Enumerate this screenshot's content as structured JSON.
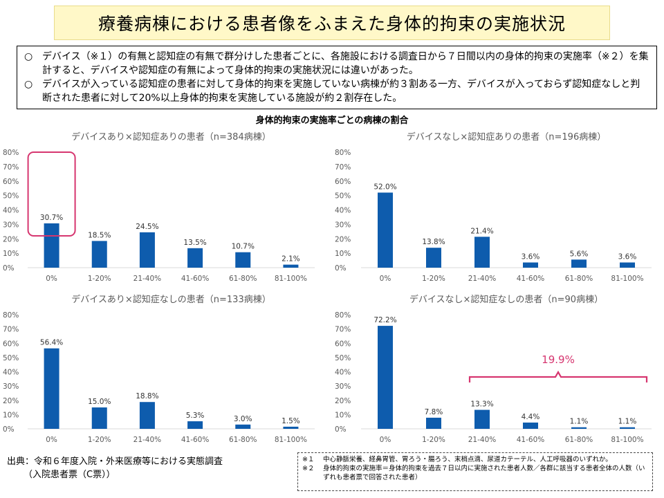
{
  "title": "療養病棟における患者像をふまえた身体的拘束の実施状況",
  "summary": [
    {
      "marker": "○",
      "text": "デバイス（※１）の有無と認知症の有無で群分けした患者ごとに、各施設における調査日から７日間以内の身体的拘束の実施率（※２）を集計すると、デバイスや認知症の有無によって身体的拘束の実施状況には違いがあった。"
    },
    {
      "marker": "○",
      "text": "デバイスが入っている認知症の患者に対して身体的拘束を実施していない病棟が約３割ある一方、デバイスが入っておらず認知症なしと判断された患者に対して20%以上身体的拘束を実施している施設が約２割存在した。"
    }
  ],
  "chart_heading": "身体的拘束の実施率ごとの病棟の割合",
  "colors": {
    "bar": "#0e5cad",
    "highlight": "#d6356f",
    "axis_text": "#595959",
    "subtitle": "#595959",
    "grid": "#d9d9d9"
  },
  "chart_data": [
    {
      "type": "bar",
      "title": "デバイスあり×認知症ありの患者（n=384病棟）",
      "categories": [
        "0%",
        "1-20%",
        "21-40%",
        "41-60%",
        "61-80%",
        "81-100%"
      ],
      "values": [
        30.7,
        18.5,
        24.5,
        13.5,
        10.7,
        2.1
      ],
      "value_labels": [
        "30.7%",
        "18.5%",
        "24.5%",
        "13.5%",
        "10.7%",
        "2.1%"
      ],
      "yticks": [
        "0%",
        "10%",
        "20%",
        "30%",
        "40%",
        "50%",
        "60%",
        "70%",
        "80%"
      ],
      "ylim": [
        0,
        80
      ],
      "highlight_box_category": "0%"
    },
    {
      "type": "bar",
      "title": "デバイスなし×認知症ありの患者（n=196病棟）",
      "categories": [
        "0%",
        "1-20%",
        "21-40%",
        "41-60%",
        "61-80%",
        "81-100%"
      ],
      "values": [
        52.0,
        13.8,
        21.4,
        3.6,
        5.6,
        3.6
      ],
      "value_labels": [
        "52.0%",
        "13.8%",
        "21.4%",
        "3.6%",
        "5.6%",
        "3.6%"
      ],
      "yticks": [
        "0%",
        "10%",
        "20%",
        "30%",
        "40%",
        "50%",
        "60%",
        "70%",
        "80%"
      ],
      "ylim": [
        0,
        80
      ]
    },
    {
      "type": "bar",
      "title": "デバイスあり×認知症なしの患者（n=133病棟）",
      "categories": [
        "0%",
        "1-20%",
        "21-40%",
        "41-60%",
        "61-80%",
        "81-100%"
      ],
      "values": [
        56.4,
        15.0,
        18.8,
        5.3,
        3.0,
        1.5
      ],
      "value_labels": [
        "56.4%",
        "15.0%",
        "18.8%",
        "5.3%",
        "3.0%",
        "1.5%"
      ],
      "yticks": [
        "0%",
        "10%",
        "20%",
        "30%",
        "40%",
        "50%",
        "60%",
        "70%",
        "80%"
      ],
      "ylim": [
        0,
        80
      ]
    },
    {
      "type": "bar",
      "title": "デバイスなし×認知症なしの患者（n=90病棟）",
      "categories": [
        "0%",
        "1-20%",
        "21-40%",
        "41-60%",
        "61-80%",
        "81-100%"
      ],
      "values": [
        72.2,
        7.8,
        13.3,
        4.4,
        1.1,
        1.1
      ],
      "value_labels": [
        "72.2%",
        "7.8%",
        "13.3%",
        "4.4%",
        "1.1%",
        "1.1%"
      ],
      "yticks": [
        "0%",
        "10%",
        "20%",
        "30%",
        "40%",
        "50%",
        "60%",
        "70%",
        "80%"
      ],
      "ylim": [
        0,
        80
      ],
      "bracket": {
        "from_category": "21-40%",
        "to_category": "81-100%",
        "label": "19.9%"
      }
    }
  ],
  "source": {
    "line1": "出典：令和６年度入院・外来医療等における実態調査",
    "line2": "（入院患者票（C票））"
  },
  "footnotes": [
    {
      "mark": "※１",
      "text": "中心静脈栄養、経鼻胃管、胃ろう・腸ろう、末梢点滴、尿道カテーテル、人工呼吸器のいずれか。"
    },
    {
      "mark": "※２",
      "text": "身体的拘束の実施率＝身体的拘束を過去７日以内に実施された患者人数／各群に該当する患者全体の人数（いずれも患者票で回答された患者）"
    }
  ]
}
